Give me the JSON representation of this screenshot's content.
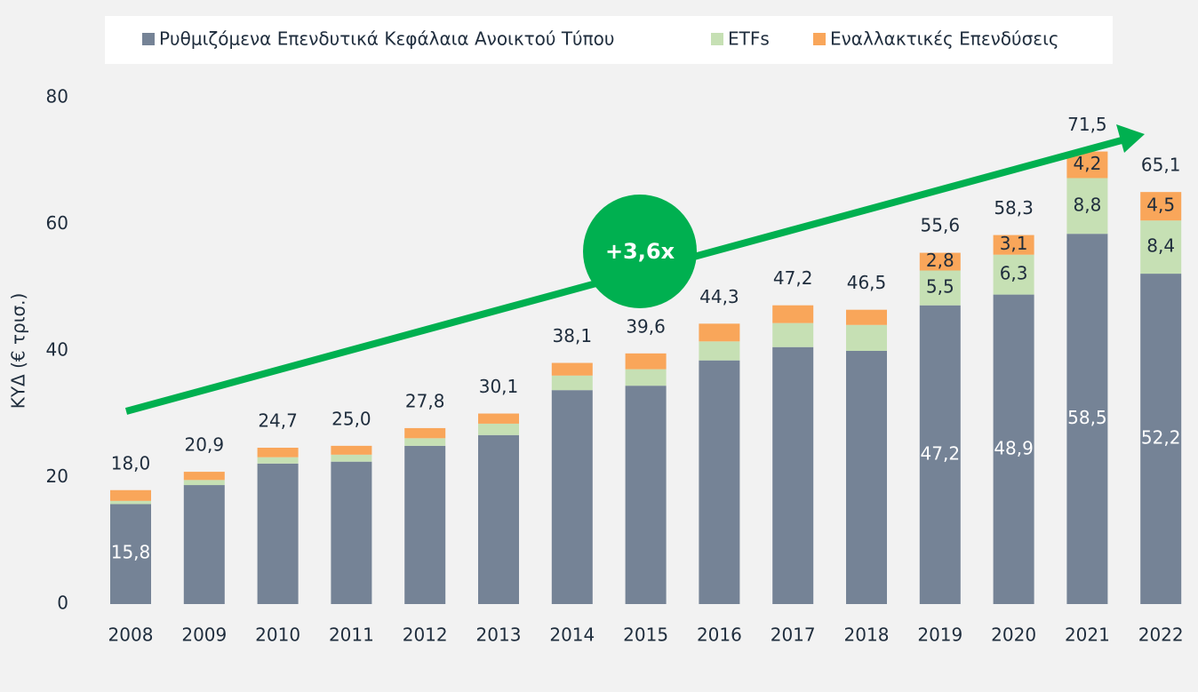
{
  "chart_data": {
    "type": "stacked_bar",
    "y_label": "ΚΥΔ (€ τρισ.)",
    "annotation": "+3,6x",
    "categories": [
      "2008",
      "2009",
      "2010",
      "2011",
      "2012",
      "2013",
      "2014",
      "2015",
      "2016",
      "2017",
      "2018",
      "2019",
      "2020",
      "2021",
      "2022"
    ],
    "series": [
      {
        "name": "Ρυθμιζόμενα Επενδυτικά Κεφάλαια Ανοικτού Τύπου",
        "color": "#758396",
        "values": [
          15.8,
          18.8,
          22.2,
          22.5,
          25.0,
          26.7,
          33.8,
          34.5,
          38.5,
          40.6,
          40.0,
          47.2,
          48.9,
          58.5,
          52.2
        ],
        "value_labels": [
          "15,8",
          null,
          null,
          null,
          null,
          null,
          null,
          null,
          null,
          null,
          null,
          "47,2",
          "48,9",
          "58,5",
          "52,2"
        ]
      },
      {
        "name": "ETFs",
        "color": "#c6e0b4",
        "values": [
          0.5,
          0.8,
          1.0,
          1.1,
          1.2,
          1.8,
          2.3,
          2.6,
          3.0,
          3.8,
          4.1,
          5.5,
          6.3,
          8.8,
          8.4
        ],
        "value_labels": [
          null,
          null,
          null,
          null,
          null,
          null,
          null,
          null,
          null,
          null,
          null,
          "5,5",
          "6,3",
          "8,8",
          "8,4"
        ]
      },
      {
        "name": "Εναλλακτικές Επενδύσεις",
        "color": "#f9a65a",
        "values": [
          1.7,
          1.3,
          1.5,
          1.4,
          1.6,
          1.6,
          2.0,
          2.5,
          2.8,
          2.8,
          2.4,
          2.8,
          3.1,
          4.2,
          4.5
        ],
        "value_labels": [
          null,
          null,
          null,
          null,
          null,
          null,
          null,
          null,
          null,
          null,
          null,
          "2,8",
          "3,1",
          "4,2",
          "4,5"
        ]
      }
    ],
    "totals": {
      "values": [
        18.0,
        20.9,
        24.7,
        25.0,
        27.8,
        30.1,
        38.1,
        39.6,
        44.3,
        47.2,
        46.5,
        55.6,
        58.3,
        71.5,
        65.1
      ],
      "value_labels": [
        "18,0",
        "20,9",
        "24,7",
        "25,0",
        "27,8",
        "30,1",
        "38,1",
        "39,6",
        "44,3",
        "47,2",
        "46,5",
        "55,6",
        "58,3",
        "71,5",
        "65,1"
      ]
    },
    "ylim": [
      0,
      80
    ],
    "yticks": [
      0,
      20,
      40,
      60,
      80
    ],
    "grid": false
  }
}
